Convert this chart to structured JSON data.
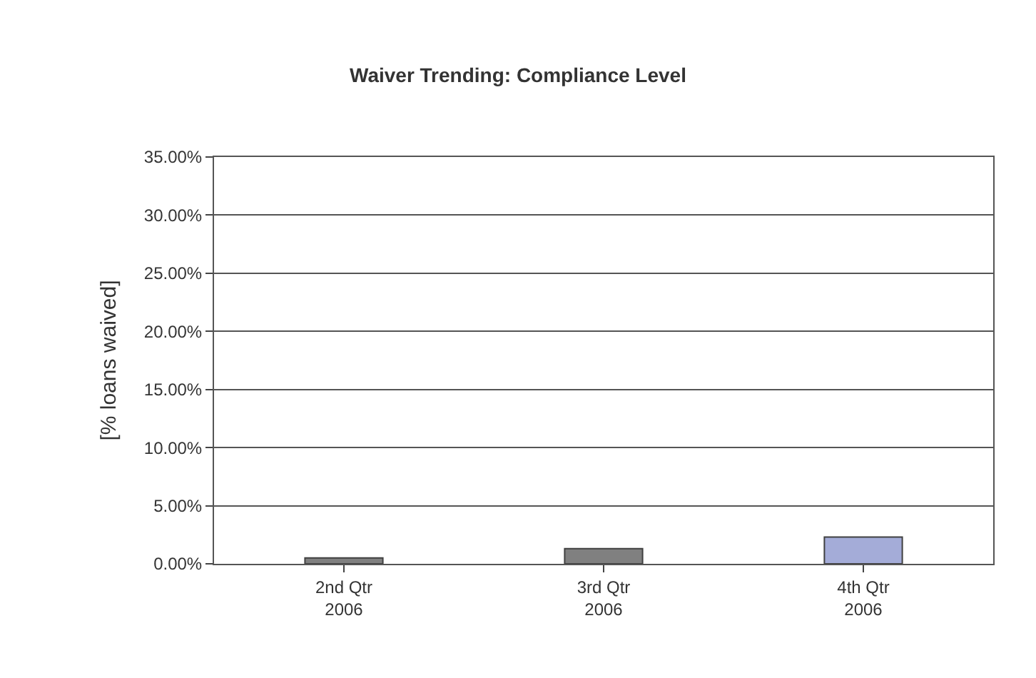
{
  "chart_data": {
    "type": "bar",
    "title": "Waiver Trending: Compliance Level",
    "ylabel": "[% loans waived]",
    "categories": [
      "2nd Qtr\n2006",
      "3rd Qtr\n2006",
      "4th Qtr\n2006"
    ],
    "values": [
      0.5,
      1.3,
      2.3
    ],
    "colors": [
      "#808080",
      "#808080",
      "#a4acd8"
    ],
    "ylim": [
      0,
      35
    ],
    "yticks": [
      {
        "value": 0,
        "label": "0.00%"
      },
      {
        "value": 5,
        "label": "5.00%"
      },
      {
        "value": 10,
        "label": "10.00%"
      },
      {
        "value": 15,
        "label": "15.00%"
      },
      {
        "value": 20,
        "label": "20.00%"
      },
      {
        "value": 25,
        "label": "25.00%"
      },
      {
        "value": 30,
        "label": "30.00%"
      },
      {
        "value": 35,
        "label": "35.00%"
      }
    ],
    "grid": "y"
  }
}
